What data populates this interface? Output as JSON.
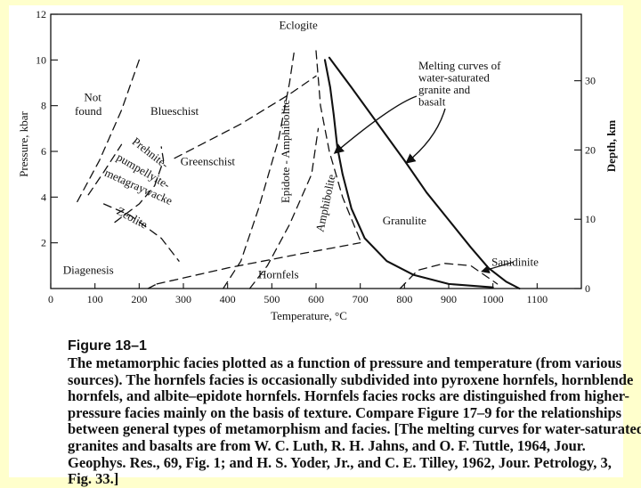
{
  "figure": {
    "title": "Figure 18–1",
    "caption_lines": [
      "The metamorphic facies plotted as a function of pressure and temperature (from various",
      "sources). The hornfels facies is occasionally subdivided into pyroxene hornfels, hornblende",
      "hornfels, and albite–epidote hornfels. Hornfels facies rocks are distinguished from higher-",
      "pressure facies mainly on the basis of texture. Compare Figure 17–9 for the relationships",
      "between general types of metamorphism and facies. [The melting curves for water-saturated",
      "granites and basalts are from W. C. Luth, R. H. Jahns, and O. F. Tuttle, 1964, Jour.",
      "Geophys. Res., 69, Fig. 1; and H. S. Yoder, Jr., and C. E. Tilley, 1962, Jour. Petrology, 3,",
      "Fig. 33.]"
    ]
  },
  "chart_data": {
    "type": "line",
    "xlabel": "Temperature, °C",
    "ylabel_left": "Pressure, kbar",
    "ylabel_right": "Depth, km",
    "xlim": [
      0,
      1200
    ],
    "ylim": [
      0,
      12
    ],
    "x_ticks": [
      0,
      100,
      200,
      300,
      400,
      500,
      600,
      700,
      800,
      900,
      1000,
      1100
    ],
    "x_tick_labels": [
      "0",
      "100",
      "200",
      "300",
      "400",
      "500",
      "600",
      "700",
      "800",
      "900",
      "1000",
      "1100"
    ],
    "y_ticks": [
      2,
      4,
      6,
      8,
      10,
      12
    ],
    "y_tick_labels": [
      "2",
      "4",
      "6",
      "8",
      "10",
      "12"
    ],
    "depth_ticks": [
      0,
      10,
      20,
      30
    ],
    "depth_tick_labels": [
      "0",
      "10",
      "20",
      "30"
    ],
    "depth_km_per_kbar": 3.3,
    "facies_labels": [
      {
        "text": "Not",
        "x": 95,
        "y": 8.2,
        "rotate": 0
      },
      {
        "text": "found",
        "x": 85,
        "y": 7.6,
        "rotate": 0
      },
      {
        "text": "Blueschist",
        "x": 280,
        "y": 7.6,
        "rotate": 0
      },
      {
        "text": "Eclogite",
        "x": 560,
        "y": 11.35,
        "rotate": 0
      },
      {
        "text": "Greenschist",
        "x": 355,
        "y": 5.4,
        "rotate": 0
      },
      {
        "text": "Epidote - Amphibolite",
        "x": 540,
        "y": 6.0,
        "rotate": -90
      },
      {
        "text": "Amphibolite",
        "x": 630,
        "y": 3.7,
        "rotate": -78
      },
      {
        "text": "Granulite",
        "x": 800,
        "y": 2.8,
        "rotate": 0
      },
      {
        "text": "Hornfels",
        "x": 515,
        "y": 0.45,
        "rotate": 0
      },
      {
        "text": "Diagenesis",
        "x": 85,
        "y": 0.65,
        "rotate": 0
      },
      {
        "text": "Sanidinite",
        "x": 1050,
        "y": 1.0,
        "rotate": 0
      },
      {
        "text": "Prehnite-",
        "x": 220,
        "y": 5.8,
        "rotate": 38
      },
      {
        "text": "pumpellyite-",
        "x": 205,
        "y": 5.0,
        "rotate": 30
      },
      {
        "text": "metagraywacke",
        "x": 195,
        "y": 4.3,
        "rotate": 24
      },
      {
        "text": "Zeolite",
        "x": 180,
        "y": 2.95,
        "rotate": 28
      }
    ],
    "melting_annotation": {
      "lines": [
        "Melting curves of",
        "water-saturated",
        "granite and",
        "basalt"
      ]
    },
    "series": [
      {
        "name": "Melting curve, water-saturated granite",
        "style": "solid",
        "points": [
          [
            620,
            10.0
          ],
          [
            632,
            8.8
          ],
          [
            640,
            7.6
          ],
          [
            648,
            6.2
          ],
          [
            660,
            5.0
          ],
          [
            680,
            3.5
          ],
          [
            710,
            2.2
          ],
          [
            760,
            1.2
          ],
          [
            820,
            0.6
          ],
          [
            900,
            0.2
          ],
          [
            1000,
            0.05
          ]
        ]
      },
      {
        "name": "Melting curve, water-saturated basalt",
        "style": "solid",
        "points": [
          [
            630,
            10.1
          ],
          [
            680,
            8.8
          ],
          [
            740,
            7.2
          ],
          [
            800,
            5.6
          ],
          [
            850,
            4.2
          ],
          [
            900,
            3.0
          ],
          [
            950,
            1.8
          ],
          [
            990,
            0.9
          ],
          [
            1030,
            0.3
          ],
          [
            1060,
            0.0
          ]
        ]
      },
      {
        "name": "Boundary: Not found / Blueschist",
        "style": "dashed",
        "points": [
          [
            60,
            3.8
          ],
          [
            110,
            5.6
          ],
          [
            160,
            7.8
          ],
          [
            200,
            10.0
          ]
        ]
      },
      {
        "name": "Boundary: Blueschist / Greenschist",
        "style": "dashed",
        "points": [
          [
            280,
            5.7
          ],
          [
            430,
            7.2
          ],
          [
            540,
            8.5
          ],
          [
            600,
            9.3
          ]
        ]
      },
      {
        "name": "Boundary: Prehnite-pumpellyite (outer)",
        "style": "dashed",
        "points": [
          [
            145,
            2.9
          ],
          [
            200,
            3.7
          ],
          [
            235,
            4.5
          ],
          [
            255,
            5.6
          ],
          [
            250,
            6.2
          ]
        ]
      },
      {
        "name": "Boundary: Prehnite-pumpellyite (inner)",
        "style": "dashed",
        "points": [
          [
            85,
            4.1
          ],
          [
            120,
            5.1
          ],
          [
            160,
            6.3
          ]
        ]
      },
      {
        "name": "Boundary: Zeolite",
        "style": "dashed",
        "points": [
          [
            120,
            3.7
          ],
          [
            180,
            3.2
          ],
          [
            250,
            2.2
          ],
          [
            290,
            1.2
          ]
        ]
      },
      {
        "name": "Boundary: Greenschist / Epidote-Amphibolite",
        "style": "dashed",
        "points": [
          [
            390,
            0.0
          ],
          [
            430,
            1.2
          ],
          [
            470,
            3.5
          ],
          [
            515,
            6.5
          ],
          [
            540,
            9.0
          ],
          [
            550,
            10.3
          ]
        ]
      },
      {
        "name": "Boundary: Epidote-Amphibolite / Amphibolite",
        "style": "dashed",
        "points": [
          [
            450,
            0.0
          ],
          [
            490,
            1.0
          ],
          [
            540,
            2.8
          ],
          [
            590,
            5.0
          ],
          [
            605,
            7.0
          ]
        ]
      },
      {
        "name": "Boundary: Hornfels (upper)",
        "style": "dashed",
        "points": [
          [
            240,
            0.2
          ],
          [
            400,
            0.9
          ],
          [
            560,
            1.5
          ],
          [
            700,
            2.0
          ]
        ]
      },
      {
        "name": "Boundary: Eclogite / Amphibolite",
        "style": "dashed",
        "points": [
          [
            600,
            10.4
          ],
          [
            610,
            8.0
          ],
          [
            630,
            6.0
          ],
          [
            660,
            4.0
          ],
          [
            700,
            2.1
          ]
        ]
      },
      {
        "name": "Boundary: Sanidinite",
        "style": "dashed",
        "points": [
          [
            790,
            0.0
          ],
          [
            830,
            0.8
          ],
          [
            890,
            1.1
          ],
          [
            950,
            1.0
          ],
          [
            1010,
            0.2
          ]
        ]
      },
      {
        "name": "Boundary: Diagenesis / Hornfels",
        "style": "dashed",
        "points": [
          [
            220,
            0.0
          ],
          [
            240,
            0.2
          ]
        ]
      }
    ]
  }
}
